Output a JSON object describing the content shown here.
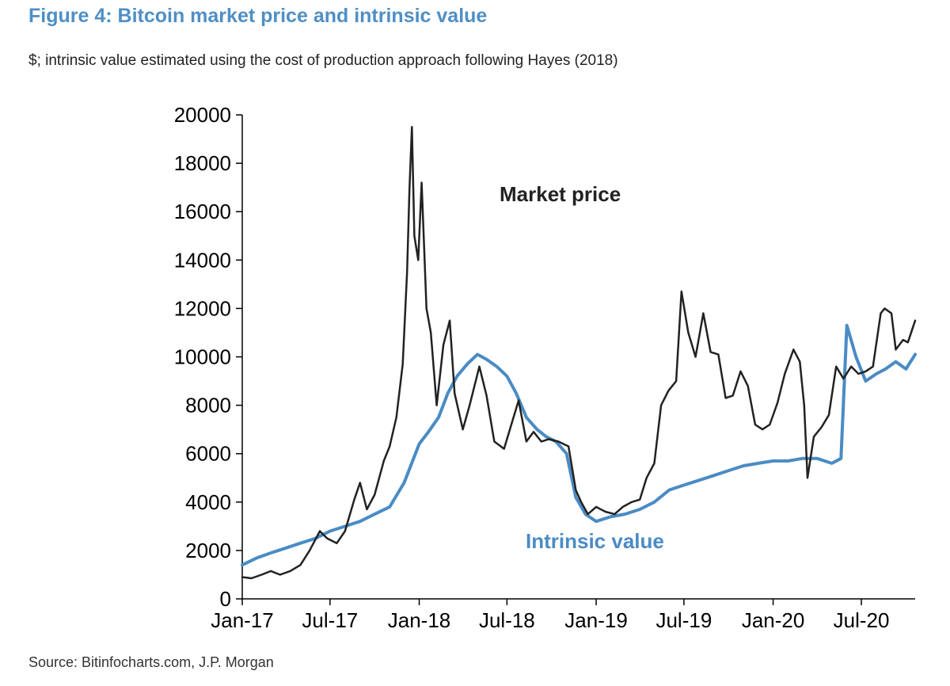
{
  "title": "Figure 4: Bitcoin market price and intrinsic value",
  "subtitle": "$; intrinsic value estimated using the cost of production approach following Hayes (2018)",
  "source": "Source: Bitinfocharts.com, J.P. Morgan",
  "chart_data": {
    "type": "line",
    "title": "Figure 4: Bitcoin market price and intrinsic value",
    "subtitle": "$; intrinsic value estimated using the cost of production approach following Hayes (2018)",
    "xlabel": "",
    "ylabel": "",
    "xlim": [
      "2017-01-01",
      "2020-10-20"
    ],
    "ylim": [
      0,
      20000
    ],
    "yticks": [
      0,
      2000,
      4000,
      6000,
      8000,
      10000,
      12000,
      14000,
      16000,
      18000,
      20000
    ],
    "xticks": [
      "Jan-17",
      "Jul-17",
      "Jan-18",
      "Jul-18",
      "Jan-19",
      "Jul-19",
      "Jan-20",
      "Jul-20"
    ],
    "xtick_dates": [
      "2017-01-01",
      "2017-07-01",
      "2018-01-01",
      "2018-07-01",
      "2019-01-01",
      "2019-07-01",
      "2020-01-01",
      "2020-07-01"
    ],
    "grid": false,
    "legend": "none",
    "annotations": [
      {
        "text": "Market price",
        "color": "#222222"
      },
      {
        "text": "Intrinsic value",
        "color": "#4a8bc4"
      }
    ],
    "series": [
      {
        "name": "Market price",
        "color": "#222222",
        "x": [
          "2017-01-01",
          "2017-01-20",
          "2017-02-10",
          "2017-03-01",
          "2017-03-20",
          "2017-04-10",
          "2017-05-01",
          "2017-05-20",
          "2017-06-10",
          "2017-06-25",
          "2017-07-15",
          "2017-08-01",
          "2017-08-20",
          "2017-09-01",
          "2017-09-15",
          "2017-10-01",
          "2017-10-20",
          "2017-11-01",
          "2017-11-15",
          "2017-11-28",
          "2017-12-07",
          "2017-12-12",
          "2017-12-17",
          "2017-12-22",
          "2017-12-30",
          "2018-01-06",
          "2018-01-16",
          "2018-01-25",
          "2018-02-06",
          "2018-02-20",
          "2018-03-05",
          "2018-03-15",
          "2018-04-01",
          "2018-04-15",
          "2018-05-05",
          "2018-05-20",
          "2018-06-05",
          "2018-06-25",
          "2018-07-10",
          "2018-07-25",
          "2018-08-10",
          "2018-08-25",
          "2018-09-10",
          "2018-09-25",
          "2018-10-15",
          "2018-11-05",
          "2018-11-20",
          "2018-12-01",
          "2018-12-15",
          "2019-01-01",
          "2019-01-20",
          "2019-02-08",
          "2019-02-25",
          "2019-03-15",
          "2019-04-01",
          "2019-04-15",
          "2019-05-01",
          "2019-05-15",
          "2019-05-30",
          "2019-06-15",
          "2019-06-26",
          "2019-07-10",
          "2019-07-25",
          "2019-08-10",
          "2019-08-25",
          "2019-09-10",
          "2019-09-25",
          "2019-10-10",
          "2019-10-26",
          "2019-11-10",
          "2019-11-25",
          "2019-12-10",
          "2019-12-25",
          "2020-01-10",
          "2020-01-25",
          "2020-02-12",
          "2020-02-25",
          "2020-03-05",
          "2020-03-12",
          "2020-03-25",
          "2020-04-10",
          "2020-04-25",
          "2020-05-10",
          "2020-05-25",
          "2020-06-10",
          "2020-06-25",
          "2020-07-10",
          "2020-07-25",
          "2020-08-10",
          "2020-08-18",
          "2020-09-01",
          "2020-09-10",
          "2020-09-25",
          "2020-10-05",
          "2020-10-20"
        ],
        "y": [
          900,
          850,
          1000,
          1150,
          1000,
          1150,
          1400,
          2000,
          2800,
          2500,
          2300,
          2800,
          4100,
          4800,
          3700,
          4300,
          5700,
          6300,
          7500,
          9700,
          13500,
          17000,
          19500,
          15000,
          14000,
          17200,
          12000,
          11000,
          8000,
          10500,
          11500,
          8500,
          7000,
          8000,
          9600,
          8400,
          6500,
          6200,
          7200,
          8200,
          6500,
          6900,
          6500,
          6600,
          6500,
          6300,
          4500,
          4000,
          3500,
          3800,
          3600,
          3500,
          3800,
          4000,
          4100,
          5000,
          5600,
          8000,
          8600,
          9000,
          12700,
          11000,
          10000,
          11800,
          10200,
          10100,
          8300,
          8400,
          9400,
          8800,
          7200,
          7000,
          7200,
          8100,
          9300,
          10300,
          9800,
          8000,
          5000,
          6700,
          7100,
          7600,
          9600,
          9100,
          9600,
          9300,
          9400,
          9600,
          11800,
          12000,
          11800,
          10300,
          10700,
          10600,
          11500
        ]
      },
      {
        "name": "Intrinsic value",
        "color": "#4a8bc4",
        "x": [
          "2017-01-01",
          "2017-02-01",
          "2017-03-01",
          "2017-04-01",
          "2017-05-01",
          "2017-06-01",
          "2017-07-01",
          "2017-08-01",
          "2017-09-01",
          "2017-10-01",
          "2017-11-01",
          "2017-12-01",
          "2018-01-01",
          "2018-01-20",
          "2018-02-10",
          "2018-03-01",
          "2018-03-20",
          "2018-04-10",
          "2018-05-01",
          "2018-05-20",
          "2018-06-10",
          "2018-07-01",
          "2018-07-20",
          "2018-08-10",
          "2018-09-01",
          "2018-09-20",
          "2018-10-10",
          "2018-11-01",
          "2018-11-20",
          "2018-12-10",
          "2019-01-01",
          "2019-02-01",
          "2019-03-01",
          "2019-04-01",
          "2019-05-01",
          "2019-06-01",
          "2019-07-01",
          "2019-08-01",
          "2019-09-01",
          "2019-10-01",
          "2019-11-01",
          "2019-12-01",
          "2020-01-01",
          "2020-02-01",
          "2020-03-01",
          "2020-04-01",
          "2020-05-01",
          "2020-05-20",
          "2020-06-01",
          "2020-06-20",
          "2020-07-10",
          "2020-08-01",
          "2020-08-20",
          "2020-09-10",
          "2020-10-01",
          "2020-10-20"
        ],
        "y": [
          1400,
          1700,
          1900,
          2100,
          2300,
          2500,
          2800,
          3000,
          3200,
          3500,
          3800,
          4800,
          6400,
          6900,
          7500,
          8500,
          9200,
          9700,
          10100,
          9900,
          9600,
          9200,
          8500,
          7500,
          7000,
          6700,
          6500,
          6000,
          4200,
          3500,
          3200,
          3400,
          3500,
          3700,
          4000,
          4500,
          4700,
          4900,
          5100,
          5300,
          5500,
          5600,
          5700,
          5700,
          5800,
          5800,
          5600,
          5800,
          11300,
          10000,
          9000,
          9300,
          9500,
          9800,
          9500,
          10100
        ]
      }
    ]
  }
}
